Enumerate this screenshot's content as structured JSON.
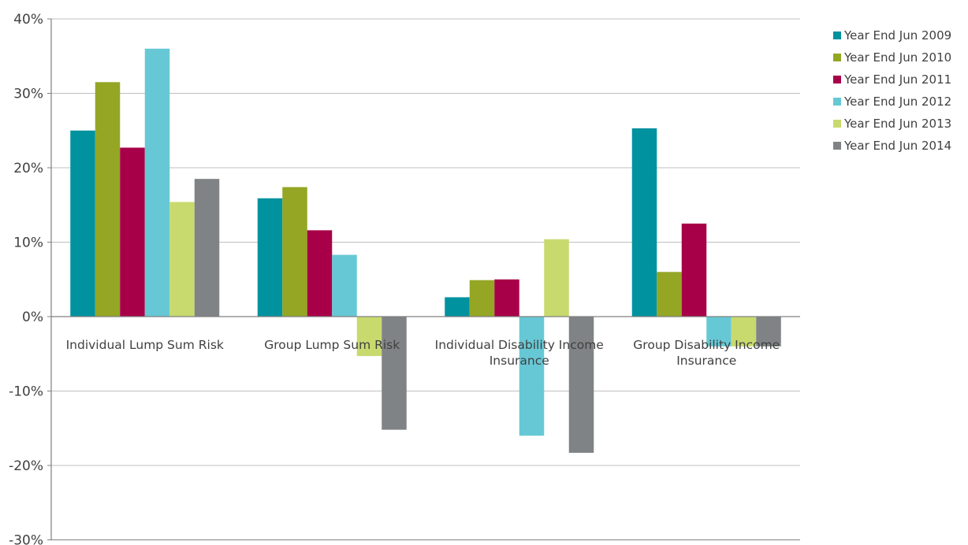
{
  "chart_data": {
    "type": "bar",
    "title": "",
    "xlabel": "",
    "ylabel": "",
    "ylim": [
      -30,
      40
    ],
    "yticks": [
      40,
      30,
      20,
      10,
      0,
      -10,
      -20,
      -30
    ],
    "ytick_labels": [
      "40%",
      "30%",
      "20%",
      "10%",
      "0%",
      "-10%",
      "-20%",
      "-30%"
    ],
    "grid": true,
    "legend_position": "right",
    "categories": [
      "Individual Lump Sum Risk",
      "Group Lump Sum Risk",
      "Individual Disability Income Insurance",
      "Group Disability Income Insurance"
    ],
    "category_label_lines": [
      [
        "Individual Lump Sum Risk"
      ],
      [
        "Group Lump Sum Risk"
      ],
      [
        "Individual Disability Income",
        "Insurance"
      ],
      [
        "Group Disability Income",
        "Insurance"
      ]
    ],
    "series": [
      {
        "name": "Year End Jun 2009",
        "color": "#00929F",
        "values": [
          25.0,
          15.9,
          2.6,
          25.3
        ]
      },
      {
        "name": "Year End Jun 2010",
        "color": "#94A624",
        "values": [
          31.5,
          17.4,
          4.9,
          6.0
        ]
      },
      {
        "name": "Year End Jun 2011",
        "color": "#A80048",
        "values": [
          22.7,
          11.6,
          5.0,
          12.5
        ]
      },
      {
        "name": "Year End Jun 2012",
        "color": "#67C8D5",
        "values": [
          36.0,
          8.3,
          -16.0,
          -4.0
        ]
      },
      {
        "name": "Year End Jun 2013",
        "color": "#C8DA6E",
        "values": [
          15.4,
          -5.3,
          10.4,
          -4.0
        ]
      },
      {
        "name": "Year End Jun 2014",
        "color": "#7F8385",
        "values": [
          18.5,
          -15.2,
          -18.3,
          -4.0
        ]
      }
    ]
  }
}
